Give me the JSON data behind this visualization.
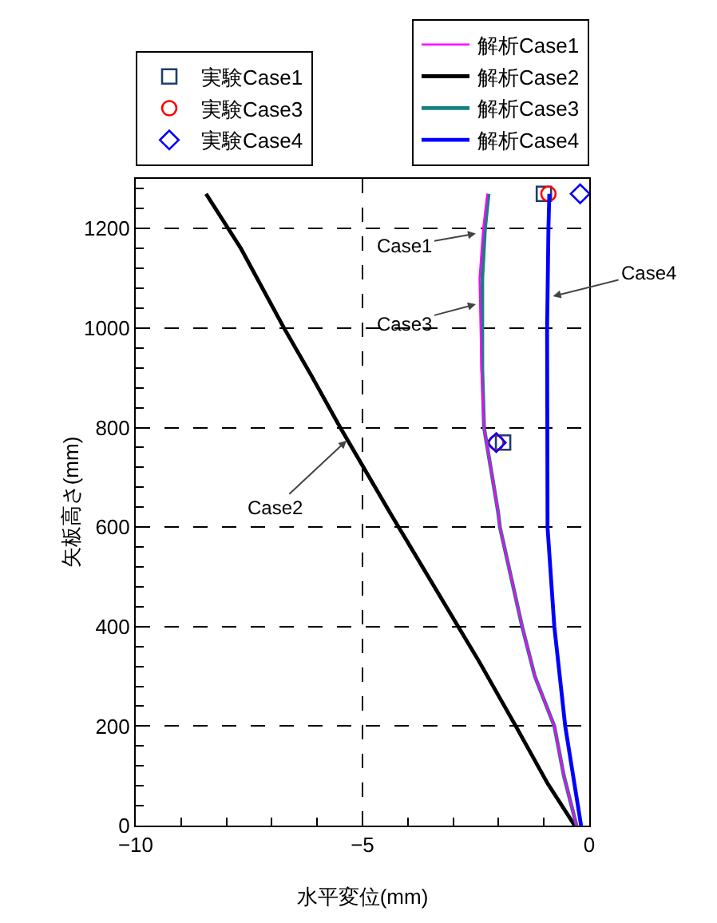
{
  "chart_data": {
    "type": "line",
    "xlabel": "水平変位(mm)",
    "ylabel": "矢板高さ(mm)",
    "xlim": [
      -10,
      0
    ],
    "ylim": [
      0,
      1300
    ],
    "xticks": [
      -10,
      {
        "value": -9,
        "label": null
      },
      {
        "value": -8,
        "label": null
      },
      {
        "value": -7,
        "label": null
      },
      {
        "value": -6,
        "label": null
      },
      -5,
      {
        "value": -4,
        "label": null
      },
      {
        "value": -3,
        "label": null
      },
      {
        "value": -2,
        "label": null
      },
      {
        "value": -1,
        "label": null
      },
      0
    ],
    "yticks": [
      0,
      {
        "value": 40,
        "label": null
      },
      {
        "value": 80,
        "label": null
      },
      {
        "value": 120,
        "label": null
      },
      {
        "value": 160,
        "label": null
      },
      200,
      {
        "value": 240,
        "label": null
      },
      {
        "value": 280,
        "label": null
      },
      {
        "value": 320,
        "label": null
      },
      {
        "value": 360,
        "label": null
      },
      400,
      {
        "value": 440,
        "label": null
      },
      {
        "value": 480,
        "label": null
      },
      {
        "value": 520,
        "label": null
      },
      {
        "value": 560,
        "label": null
      },
      600,
      {
        "value": 640,
        "label": null
      },
      {
        "value": 680,
        "label": null
      },
      {
        "value": 720,
        "label": null
      },
      {
        "value": 760,
        "label": null
      },
      800,
      {
        "value": 840,
        "label": null
      },
      {
        "value": 880,
        "label": null
      },
      {
        "value": 920,
        "label": null
      },
      {
        "value": 960,
        "label": null
      },
      1000,
      {
        "value": 1040,
        "label": null
      },
      {
        "value": 1080,
        "label": null
      },
      {
        "value": 1120,
        "label": null
      },
      {
        "value": 1160,
        "label": null
      },
      1200,
      {
        "value": 1240,
        "label": null
      },
      {
        "value": 1280,
        "label": null
      }
    ],
    "grid": true,
    "legend": "top",
    "series": [
      {
        "name": "実験Case1",
        "type": "scatter",
        "marker": "square",
        "color": "#1f3d6b",
        "x": [
          -1.0,
          -1.9
        ],
        "values": [
          1270,
          770
        ]
      },
      {
        "name": "実験Case3",
        "type": "scatter",
        "marker": "circle",
        "color": "#ff0000",
        "x": [
          -0.9,
          -2.05
        ],
        "values": [
          1270,
          770
        ]
      },
      {
        "name": "実験Case4",
        "type": "scatter",
        "marker": "diamond",
        "color": "#0000ff",
        "x": [
          -0.2,
          -2.05
        ],
        "values": [
          1270,
          770
        ]
      },
      {
        "name": "解析Case1",
        "color": "#ff00ff",
        "x": [
          -0.28,
          -0.56,
          -0.77,
          -1.2,
          -1.48,
          -1.97,
          -2.01,
          -2.32,
          -2.38,
          -2.42,
          -2.34,
          -2.25
        ],
        "values": [
          0,
          100,
          200,
          300,
          400,
          600,
          630,
          800,
          920,
          1100,
          1200,
          1270
        ]
      },
      {
        "name": "解析Case2",
        "color": "#000000",
        "x": [
          -0.32,
          -0.92,
          -1.62,
          -2.43,
          -2.89,
          -4.4,
          -5.49,
          -6.13,
          -6.73,
          -7.68,
          -8.45
        ],
        "values": [
          0,
          85,
          200,
          330,
          400,
          630,
          800,
          905,
          1000,
          1160,
          1270
        ]
      },
      {
        "name": "解析Case3",
        "color": "#158080",
        "x": [
          -0.28,
          -0.56,
          -0.77,
          -1.2,
          -1.48,
          -1.97,
          -2.01,
          -2.32,
          -2.36,
          -2.36,
          -2.3,
          -2.22
        ],
        "values": [
          0,
          100,
          200,
          300,
          400,
          600,
          630,
          800,
          920,
          1100,
          1200,
          1270
        ]
      },
      {
        "name": "解析Case4",
        "color": "#0000ff",
        "x": [
          -0.18,
          -0.53,
          -0.77,
          -0.92,
          -0.92,
          -0.93,
          -0.92,
          -0.9,
          -0.88
        ],
        "values": [
          0,
          200,
          400,
          600,
          630,
          1000,
          1060,
          1200,
          1270
        ]
      }
    ],
    "annotations": [
      {
        "text": "Case1",
        "x": -2.5,
        "y": 1190
      },
      {
        "text": "Case3",
        "x": -2.5,
        "y": 1048
      },
      {
        "text": "Case4",
        "x": -0.8,
        "y": 1064
      },
      {
        "text": "Case2",
        "x": -5.35,
        "y": 774
      }
    ]
  }
}
